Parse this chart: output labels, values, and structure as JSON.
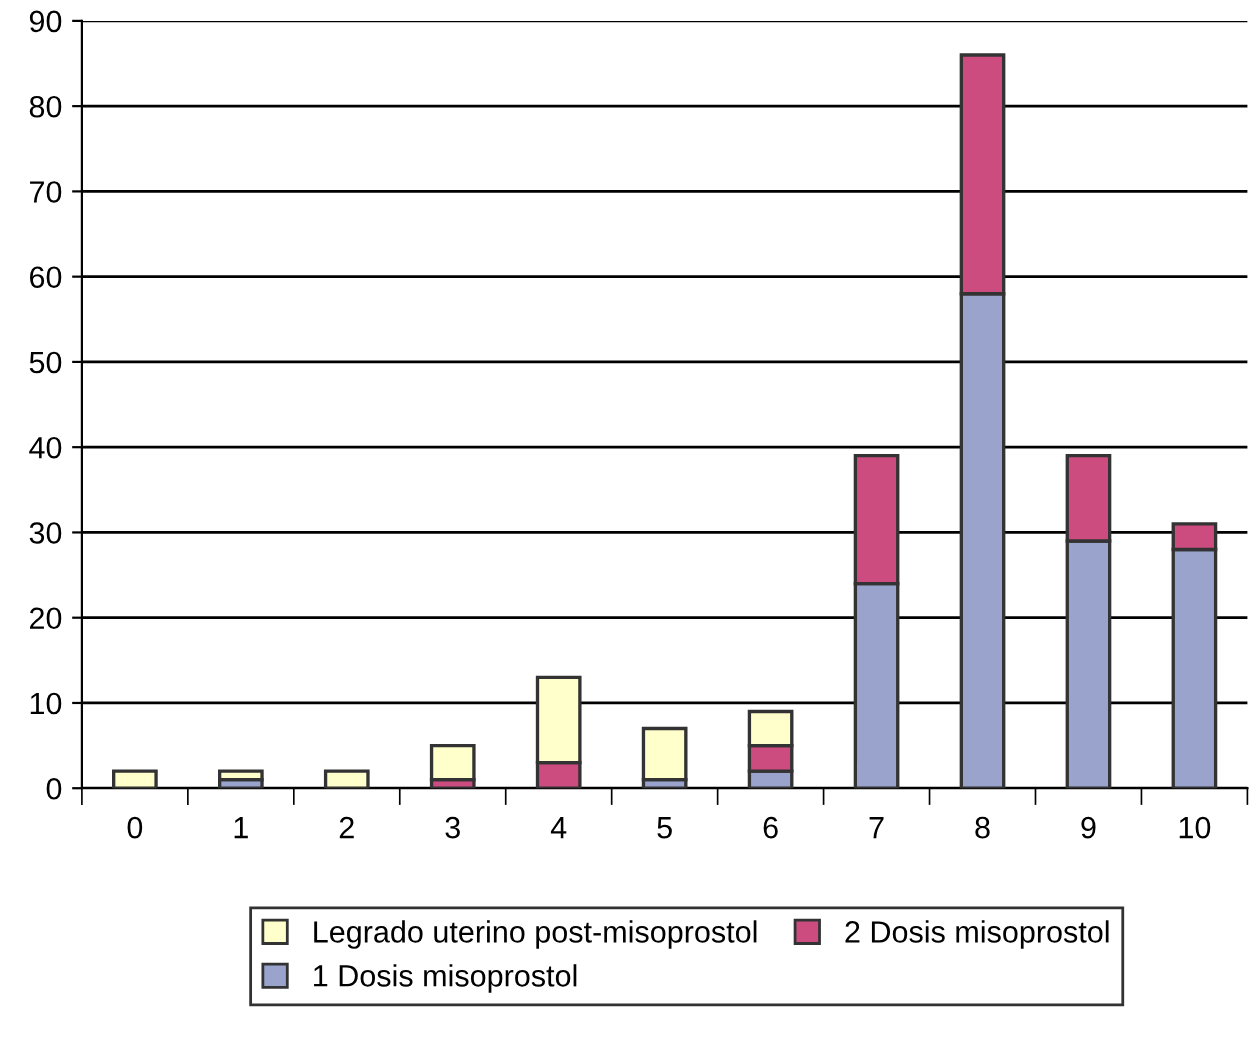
{
  "chart_data": {
    "type": "bar",
    "stacked": true,
    "categories": [
      "0",
      "1",
      "2",
      "3",
      "4",
      "5",
      "6",
      "7",
      "8",
      "9",
      "10"
    ],
    "series": [
      {
        "name": "1 Dosis misoprostol",
        "color": "#99a3cc",
        "values": [
          0,
          1,
          0,
          0,
          0,
          1,
          2,
          24,
          58,
          29,
          28
        ]
      },
      {
        "name": "2 Dosis misoprostol",
        "color": "#cc4c80",
        "values": [
          0,
          0,
          0,
          1,
          3,
          0,
          3,
          15,
          28,
          10,
          3
        ]
      },
      {
        "name": "Legrado uterino post-misoprostol",
        "color": "#ffffcc",
        "values": [
          2,
          1,
          2,
          4,
          10,
          6,
          4,
          0,
          0,
          0,
          0
        ]
      }
    ],
    "ylim": [
      0,
      90
    ],
    "yticks": [
      0,
      10,
      20,
      30,
      40,
      50,
      60,
      70,
      80,
      90
    ],
    "grid": "y",
    "legend": "bottom"
  }
}
